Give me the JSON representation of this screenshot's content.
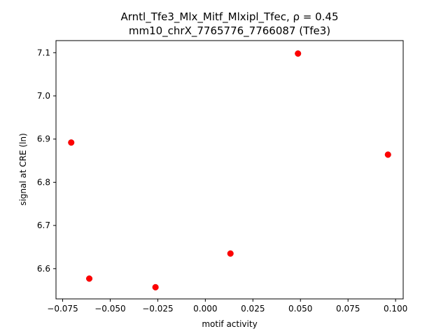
{
  "chart_data": {
    "type": "scatter",
    "title_line1": "Arntl_Tfe3_Mlx_Mitf_Mlxipl_Tfec, ",
    "title_rho": "ρ = 0.45",
    "title_line2": "mm10_chrX_7765776_7766087 (Tfe3)",
    "xlabel": "motif activity",
    "ylabel": "signal at CRE (ln)",
    "xlim": [
      -0.0785,
      0.104
    ],
    "ylim": [
      6.53,
      7.128
    ],
    "xticks": [
      -0.075,
      -0.05,
      -0.025,
      0.0,
      0.025,
      0.05,
      0.075,
      0.1
    ],
    "xtick_labels": [
      "−0.075",
      "−0.050",
      "−0.025",
      "0.000",
      "0.025",
      "0.050",
      "0.075",
      "0.100"
    ],
    "yticks": [
      6.6,
      6.7,
      6.8,
      6.9,
      7.0,
      7.1
    ],
    "ytick_labels": [
      "6.6",
      "6.7",
      "6.8",
      "6.9",
      "7.0",
      "7.1"
    ],
    "points": [
      {
        "x": -0.0705,
        "y": 6.892
      },
      {
        "x": -0.061,
        "y": 6.577
      },
      {
        "x": -0.0262,
        "y": 6.557
      },
      {
        "x": 0.0132,
        "y": 6.635
      },
      {
        "x": 0.0487,
        "y": 7.098
      },
      {
        "x": 0.096,
        "y": 6.864
      }
    ],
    "color": "#ff0000",
    "grid": false,
    "legend": "none"
  }
}
